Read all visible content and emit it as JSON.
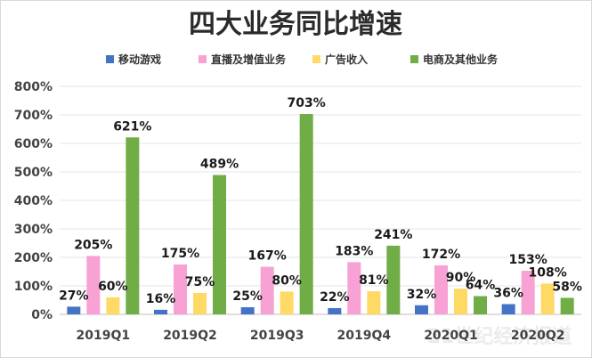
{
  "chart_data": {
    "type": "bar",
    "title": "四大业务同比增速",
    "categories": [
      "2019Q1",
      "2019Q2",
      "2019Q3",
      "2019Q4",
      "2020Q1",
      "2020Q2"
    ],
    "series": [
      {
        "name": "移动游戏",
        "color": "#4472c4",
        "values": [
          27,
          16,
          25,
          22,
          32,
          36
        ]
      },
      {
        "name": "直播及增值业务",
        "color": "#f7a1d4",
        "values": [
          205,
          175,
          167,
          183,
          172,
          153
        ]
      },
      {
        "name": "广告收入",
        "color": "#ffd966",
        "values": [
          60,
          75,
          80,
          81,
          90,
          108
        ]
      },
      {
        "name": "电商及其他业务",
        "color": "#70ad47",
        "values": [
          621,
          489,
          703,
          241,
          64,
          58
        ]
      }
    ],
    "ylim": [
      0,
      800
    ],
    "yticks": [
      0,
      100,
      200,
      300,
      400,
      500,
      600,
      700,
      800
    ],
    "tick_suffix": "%",
    "legend_position": "top",
    "grid": true
  },
  "watermark": "21世纪经济报道"
}
